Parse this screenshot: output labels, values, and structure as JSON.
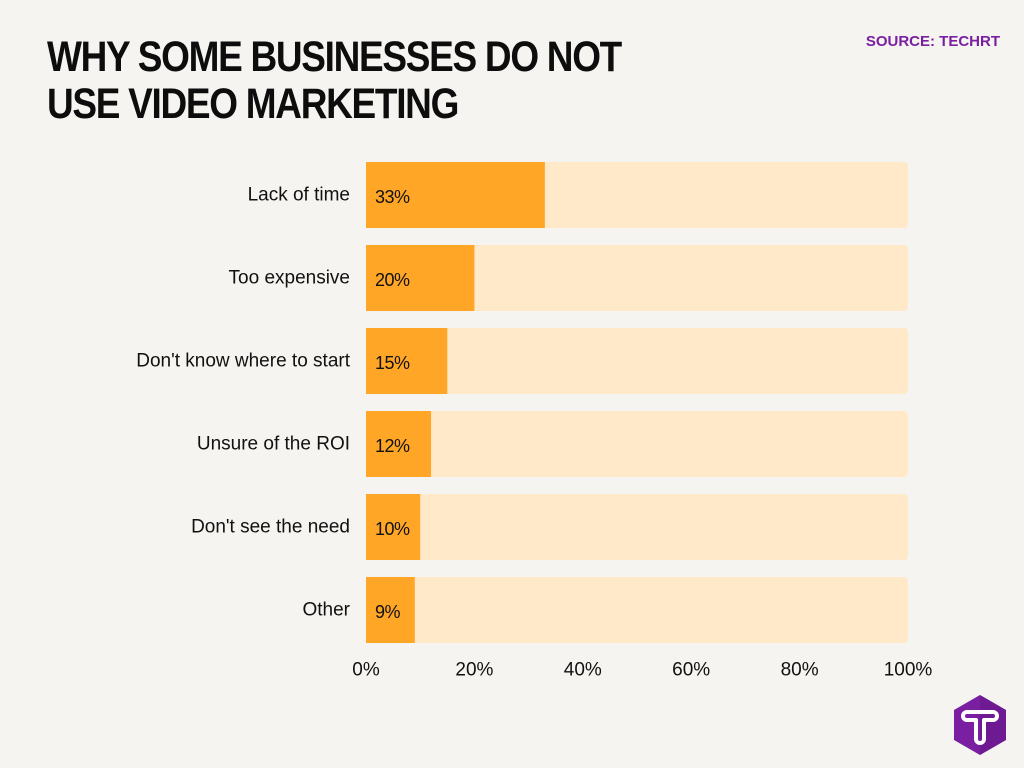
{
  "header": {
    "title": "WHY SOME BUSINESSES DO NOT USE VIDEO MARKETING",
    "source": "SOURCE: TECHRT"
  },
  "colors": {
    "bar": "#ffa626",
    "track": "#ffe9c8",
    "background": "#f5f4f0",
    "text": "#111111",
    "source": "#7a1fa2",
    "logo": "#7b1fa2"
  },
  "logo": {
    "icon": "techrt-logo-icon",
    "letter": "T"
  },
  "chart_data": {
    "type": "bar",
    "orientation": "horizontal",
    "categories": [
      "Lack of time",
      "Too expensive",
      "Don't know where to start",
      "Unsure of the ROI",
      "Don't see the need",
      "Other"
    ],
    "values": [
      33,
      20,
      15,
      12,
      10,
      9
    ],
    "data_labels": [
      "33%",
      "20%",
      "15%",
      "12%",
      "10%",
      "9%"
    ],
    "xlim": [
      0,
      100
    ],
    "x_ticks": [
      0,
      20,
      40,
      60,
      80,
      100
    ],
    "x_tick_labels": [
      "0%",
      "20%",
      "40%",
      "60%",
      "80%",
      "100%"
    ],
    "title": "WHY SOME BUSINESSES DO NOT USE VIDEO MARKETING",
    "xlabel": "",
    "ylabel": "",
    "grid": false,
    "legend": "none"
  }
}
